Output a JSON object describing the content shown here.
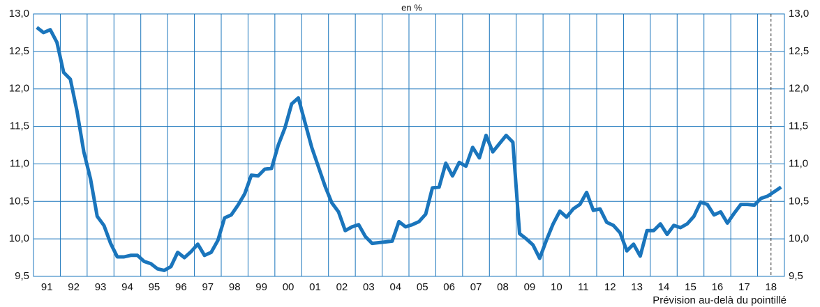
{
  "chart_data": {
    "type": "line",
    "subtitle": "en %",
    "note": "Prévision au-delà du pointillé",
    "categories": [
      null,
      "91",
      null,
      null,
      null,
      "92",
      null,
      null,
      null,
      "93",
      null,
      null,
      null,
      "94",
      null,
      null,
      null,
      "95",
      null,
      null,
      null,
      "96",
      null,
      null,
      null,
      "97",
      null,
      null,
      null,
      "98",
      null,
      null,
      null,
      "99",
      null,
      null,
      null,
      "00",
      null,
      null,
      null,
      "01",
      null,
      null,
      null,
      "02",
      null,
      null,
      null,
      "03",
      null,
      null,
      null,
      "04",
      null,
      null,
      null,
      "05",
      null,
      null,
      null,
      "06",
      null,
      null,
      null,
      "07",
      null,
      null,
      null,
      "08",
      null,
      null,
      null,
      "09",
      null,
      null,
      null,
      "10",
      null,
      null,
      null,
      "11",
      null,
      null,
      null,
      "12",
      null,
      null,
      null,
      "13",
      null,
      null,
      null,
      "14",
      null,
      null,
      null,
      "15",
      null,
      null,
      null,
      "16",
      null,
      null,
      null,
      "17",
      null,
      null,
      null,
      "18",
      null,
      null
    ],
    "series": [
      {
        "color": "#1a75bc",
        "values": [
          12.82,
          12.75,
          12.79,
          12.62,
          12.22,
          12.13,
          11.7,
          11.16,
          10.8,
          10.3,
          10.18,
          9.94,
          9.76,
          9.76,
          9.78,
          9.78,
          9.7,
          9.67,
          9.6,
          9.58,
          9.63,
          9.82,
          9.75,
          9.83,
          9.93,
          9.78,
          9.82,
          9.98,
          10.28,
          10.32,
          10.45,
          10.6,
          10.85,
          10.84,
          10.93,
          10.94,
          11.25,
          11.48,
          11.8,
          11.88,
          11.55,
          11.22,
          10.96,
          10.7,
          10.48,
          10.36,
          10.11,
          10.16,
          10.19,
          10.03,
          9.94,
          9.95,
          9.96,
          9.97,
          10.23,
          10.16,
          10.19,
          10.23,
          10.33,
          10.68,
          10.69,
          11.01,
          10.84,
          11.02,
          10.97,
          11.22,
          11.08,
          11.38,
          11.16,
          11.27,
          11.38,
          11.29,
          10.07,
          10.0,
          9.92,
          9.74,
          9.98,
          10.2,
          10.37,
          10.29,
          10.4,
          10.46,
          10.62,
          10.38,
          10.4,
          10.22,
          10.18,
          10.08,
          9.84,
          9.93,
          9.77,
          10.11,
          10.11,
          10.2,
          10.06,
          10.18,
          10.15,
          10.2,
          10.3,
          10.49,
          10.46,
          10.32,
          10.36,
          10.21,
          10.34,
          10.46,
          10.46,
          10.45,
          10.54,
          10.57,
          10.63,
          10.69
        ]
      }
    ],
    "ylim": [
      9.5,
      13.0
    ],
    "yticks": [
      {
        "value": 9.5,
        "label": "9,5"
      },
      {
        "value": 10.0,
        "label": "10,0"
      },
      {
        "value": 10.5,
        "label": "10,5"
      },
      {
        "value": 11.0,
        "label": "11,0"
      },
      {
        "value": 11.5,
        "label": "11,5"
      },
      {
        "value": 12.0,
        "label": "12,0"
      },
      {
        "value": 12.5,
        "label": "12,5"
      },
      {
        "value": 13.0,
        "label": "13,0"
      }
    ],
    "grid": true
  }
}
